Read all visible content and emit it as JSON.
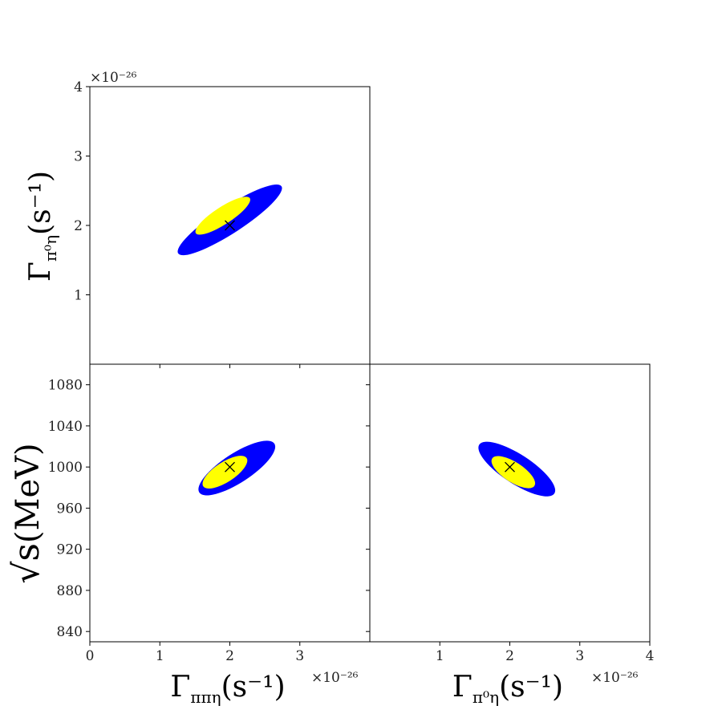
{
  "colors": {
    "outer": "#0000ff",
    "inner": "#ffff00",
    "marker": "#000000",
    "frame": "#000000"
  },
  "chart_data": [
    {
      "type": "scatter",
      "name": "top-left",
      "xlim": [
        0,
        4
      ],
      "ylim": [
        0,
        4
      ],
      "xticks": [
        1,
        2,
        3
      ],
      "yticks": [
        1,
        2,
        3,
        4
      ],
      "yticklabels": [
        "1",
        "2",
        "3",
        "4"
      ],
      "y_multiplier": "×10⁻²⁶",
      "ylabel": {
        "main": "Γ",
        "sub": "π⁰η",
        "unit": "(s⁻¹)"
      },
      "outer": {
        "cx": 2.0,
        "cy": 2.08,
        "a": 0.88,
        "b": 0.1,
        "angle_deg": -33
      },
      "inner": {
        "cx": 1.9,
        "cy": 2.14,
        "a": 0.46,
        "b": 0.065,
        "angle_deg": -33
      },
      "best_fit": {
        "x": 2.0,
        "y": 2.0
      }
    },
    {
      "type": "scatter",
      "name": "bottom-left",
      "xlim": [
        0,
        4
      ],
      "ylim": [
        830,
        1100
      ],
      "xticks": [
        0,
        1,
        2,
        3
      ],
      "yticks": [
        840,
        880,
        920,
        960,
        1000,
        1040,
        1080
      ],
      "xticklabels": [
        "0",
        "1",
        "2",
        "3"
      ],
      "yticklabels": [
        "840",
        "880",
        "920",
        "960",
        "1000",
        "1040",
        "1080"
      ],
      "x_multiplier": "×10⁻²⁶",
      "xlabel": {
        "main": "Γ",
        "sub": "ππη",
        "unit": "(s⁻¹)"
      },
      "ylabel": {
        "main": "√s",
        "unit": "(MeV)"
      },
      "outer": {
        "cx": 2.1,
        "cy": 999,
        "a": 0.64,
        "b": 0.11,
        "angle_deg": -33,
        "y_min": 970,
        "y_max": 1030
      },
      "inner": {
        "cx": 1.93,
        "cy": 995,
        "a": 0.37,
        "b": 0.075,
        "angle_deg": -33
      },
      "best_fit": {
        "x": 2.0,
        "y": 1000
      }
    },
    {
      "type": "scatter",
      "name": "bottom-right",
      "xlim": [
        0,
        4
      ],
      "ylim": [
        830,
        1100
      ],
      "xticks": [
        1,
        2,
        3,
        4
      ],
      "yticks": [
        840,
        880,
        920,
        960,
        1000,
        1040,
        1080
      ],
      "xticklabels": [
        "1",
        "2",
        "3",
        "4"
      ],
      "x_multiplier": "×10⁻²⁶",
      "xlabel": {
        "main": "Γ",
        "sub": "π⁰η",
        "unit": "(s⁻¹)"
      },
      "outer": {
        "cx": 2.1,
        "cy": 998,
        "a": 0.64,
        "b": 0.11,
        "angle_deg": 33,
        "y_min": 970,
        "y_max": 1030
      },
      "inner": {
        "cx": 2.05,
        "cy": 995,
        "a": 0.36,
        "b": 0.075,
        "angle_deg": 33
      },
      "best_fit": {
        "x": 2.0,
        "y": 1000
      }
    }
  ]
}
